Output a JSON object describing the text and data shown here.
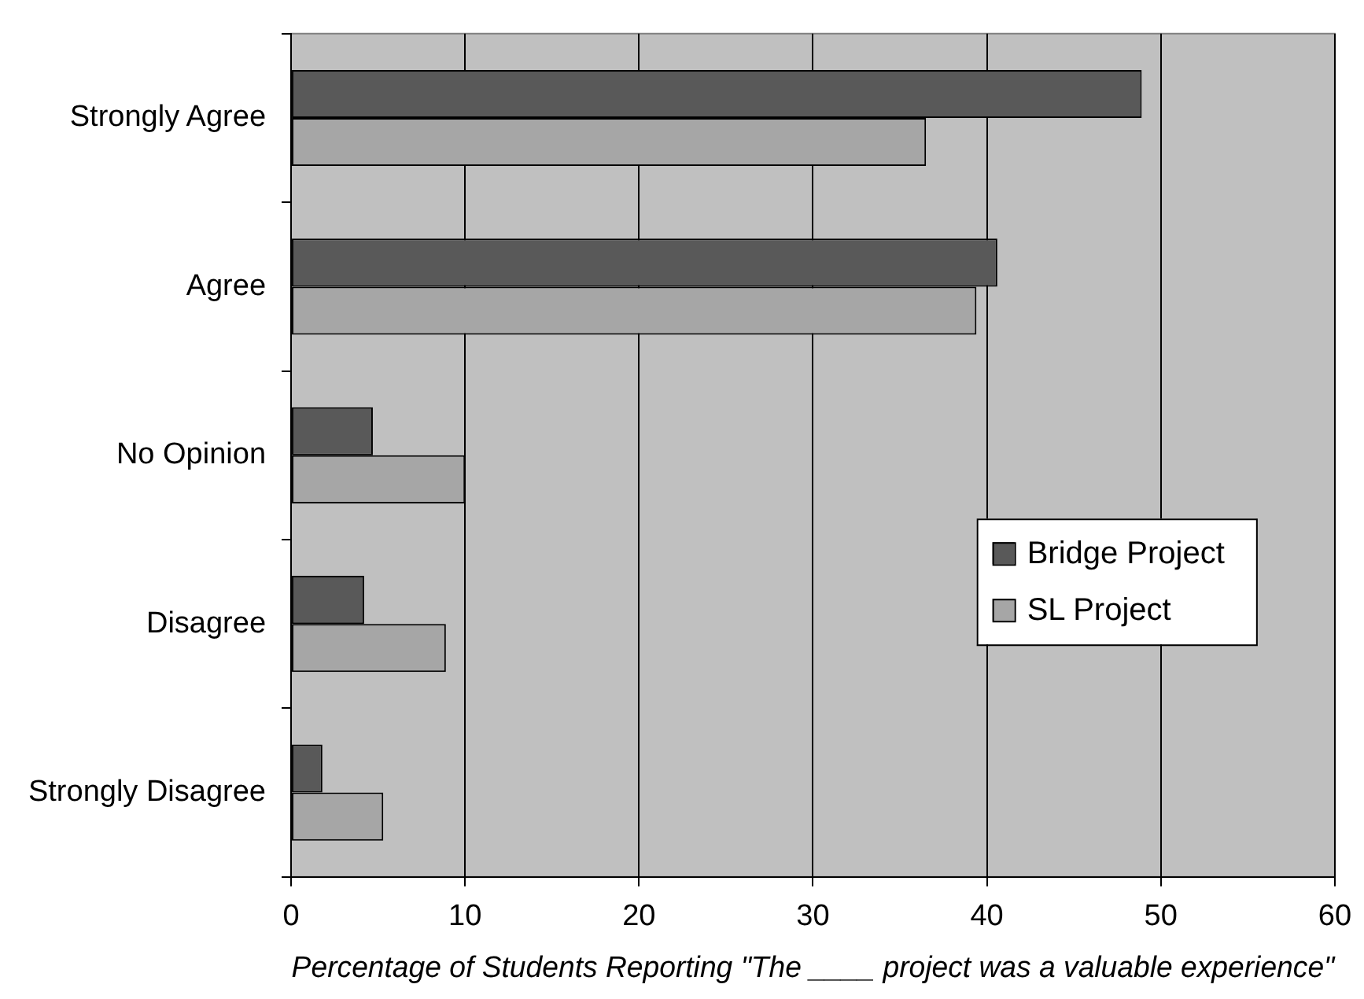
{
  "chart_data": {
    "type": "bar",
    "orientation": "horizontal",
    "xlabel": "Percentage of Students Reporting \"The ____ project was a valuable experience\"",
    "categories": [
      "Strongly Agree",
      "Agree",
      "No Opinion",
      "Disagree",
      "Strongly Disagree"
    ],
    "series": [
      {
        "name": "Bridge Project",
        "color": "#595959",
        "values": [
          48.9,
          40.6,
          4.7,
          4.2,
          1.8
        ]
      },
      {
        "name": "SL Project",
        "color": "#a6a6a6",
        "values": [
          36.5,
          39.4,
          10.0,
          8.9,
          5.3
        ]
      }
    ],
    "xlim": [
      0,
      60
    ],
    "xticks": [
      0,
      10,
      20,
      30,
      40,
      50,
      60
    ],
    "grid": "x",
    "legend": "right"
  }
}
